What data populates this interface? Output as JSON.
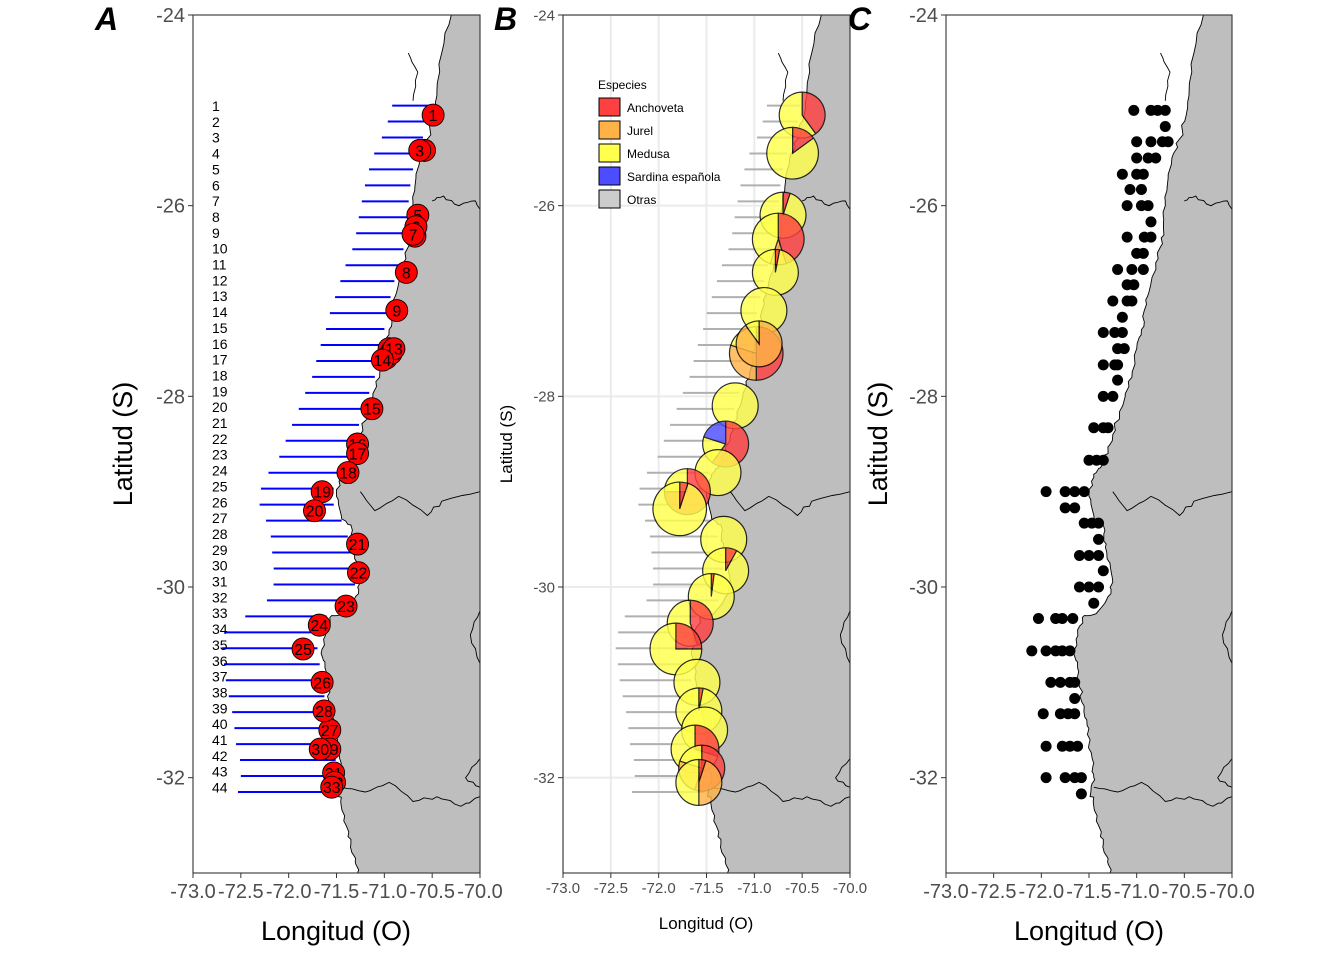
{
  "panels": [
    {
      "id": "A",
      "letter": "A",
      "xlabel": "Longitud (O)",
      "ylabel": "Latitud (S)"
    },
    {
      "id": "B",
      "letter": "B",
      "xlabel": "Longitud (O)",
      "ylabel": "Latitud (S)"
    },
    {
      "id": "C",
      "letter": "C",
      "xlabel": "Longitud (O)",
      "ylabel": "Latitud (S)"
    }
  ],
  "axes": {
    "x_ticks": [
      "-73.0",
      "-72.5",
      "-72.0",
      "-71.5",
      "-71.0",
      "-70.5",
      "-70.0"
    ],
    "y_ticks": [
      "-24",
      "-26",
      "-28",
      "-30",
      "-32"
    ],
    "xlim": [
      -73.0,
      -70.0
    ],
    "ylim": [
      -33.0,
      -24.0
    ]
  },
  "colors": {
    "land": "#bebebe",
    "transect": "#0000ff",
    "station": "#ff0000",
    "grid": "#ebebeb"
  },
  "legend": {
    "title": "Especies",
    "position": "top-left",
    "items": [
      {
        "label": "Anchoveta",
        "color": "#ff4040"
      },
      {
        "label": "Jurel",
        "color": "#ffb347"
      },
      {
        "label": "Medusa",
        "color": "#ffff4d"
      },
      {
        "label": "Sardina española",
        "color": "#4d4dff"
      },
      {
        "label": "Otras",
        "color": "#cccccc"
      }
    ]
  },
  "transect_labels": [
    "1",
    "2",
    "3",
    "4",
    "5",
    "6",
    "7",
    "8",
    "9",
    "10",
    "11",
    "12",
    "13",
    "14",
    "15",
    "16",
    "17",
    "18",
    "19",
    "20",
    "21",
    "22",
    "23",
    "24",
    "25",
    "26",
    "27",
    "28",
    "29",
    "30",
    "31",
    "32",
    "33",
    "34",
    "35",
    "36",
    "37",
    "38",
    "39",
    "40",
    "41",
    "42",
    "43",
    "44"
  ],
  "chart_data": [
    {
      "type": "scatter",
      "panel": "A",
      "description_label": "stations",
      "x_label": "Longitud (O)",
      "y_label": "Latitud (S)",
      "points": [
        {
          "id": "1",
          "lon": -70.49,
          "lat": -25.05
        },
        {
          "id": "2",
          "lon": -70.58,
          "lat": -25.42
        },
        {
          "id": "3",
          "lon": -70.63,
          "lat": -25.42
        },
        {
          "id": "4",
          "lon": -70.68,
          "lat": -26.32
        },
        {
          "id": "5",
          "lon": -70.65,
          "lat": -26.1
        },
        {
          "id": "6",
          "lon": -70.67,
          "lat": -26.22
        },
        {
          "id": "7",
          "lon": -70.7,
          "lat": -26.3
        },
        {
          "id": "8",
          "lon": -70.77,
          "lat": -26.7
        },
        {
          "id": "9",
          "lon": -70.87,
          "lat": -27.1
        },
        {
          "id": "10",
          "lon": -70.95,
          "lat": -27.5
        },
        {
          "id": "11",
          "lon": -70.98,
          "lat": -27.6
        },
        {
          "id": "12",
          "lon": -70.93,
          "lat": -27.55
        },
        {
          "id": "13",
          "lon": -70.9,
          "lat": -27.5
        },
        {
          "id": "14",
          "lon": -71.02,
          "lat": -27.62
        },
        {
          "id": "15",
          "lon": -71.13,
          "lat": -28.13
        },
        {
          "id": "16",
          "lon": -71.28,
          "lat": -28.5
        },
        {
          "id": "17",
          "lon": -71.28,
          "lat": -28.6
        },
        {
          "id": "18",
          "lon": -71.38,
          "lat": -28.8
        },
        {
          "id": "19",
          "lon": -71.65,
          "lat": -29.0
        },
        {
          "id": "20",
          "lon": -71.73,
          "lat": -29.2
        },
        {
          "id": "21",
          "lon": -71.28,
          "lat": -29.55
        },
        {
          "id": "22",
          "lon": -71.27,
          "lat": -29.85
        },
        {
          "id": "23",
          "lon": -71.4,
          "lat": -30.2
        },
        {
          "id": "24",
          "lon": -71.68,
          "lat": -30.4
        },
        {
          "id": "25",
          "lon": -71.85,
          "lat": -30.65
        },
        {
          "id": "26",
          "lon": -71.65,
          "lat": -31.0
        },
        {
          "id": "27",
          "lon": -71.57,
          "lat": -31.5
        },
        {
          "id": "28",
          "lon": -71.63,
          "lat": -31.3
        },
        {
          "id": "29",
          "lon": -71.57,
          "lat": -31.7
        },
        {
          "id": "30",
          "lon": -71.67,
          "lat": -31.7
        },
        {
          "id": "31",
          "lon": -71.53,
          "lat": -31.95
        },
        {
          "id": "32",
          "lon": -71.52,
          "lat": -32.05
        },
        {
          "id": "33",
          "lon": -71.55,
          "lat": -32.1
        }
      ]
    },
    {
      "type": "pie",
      "panel": "B",
      "series_names": [
        "Anchoveta",
        "Jurel",
        "Medusa",
        "Sardina española",
        "Otras"
      ],
      "pies": [
        {
          "lon": -70.5,
          "lat": -25.05,
          "r": 0.24,
          "fractions": [
            0.4,
            0.0,
            0.6,
            0.0,
            0.0
          ]
        },
        {
          "lon": -70.6,
          "lat": -25.45,
          "r": 0.27,
          "fractions": [
            0.15,
            0.0,
            0.85,
            0.0,
            0.0
          ]
        },
        {
          "lon": -70.7,
          "lat": -26.1,
          "r": 0.24,
          "fractions": [
            0.05,
            0.0,
            0.95,
            0.0,
            0.0
          ]
        },
        {
          "lon": -70.75,
          "lat": -26.35,
          "r": 0.27,
          "fractions": [
            0.45,
            0.1,
            0.45,
            0.0,
            0.0
          ]
        },
        {
          "lon": -70.78,
          "lat": -26.7,
          "r": 0.24,
          "fractions": [
            0.03,
            0.0,
            0.97,
            0.0,
            0.0
          ]
        },
        {
          "lon": -70.9,
          "lat": -27.1,
          "r": 0.24,
          "fractions": [
            0.0,
            0.0,
            1.0,
            0.0,
            0.0
          ]
        },
        {
          "lon": -70.98,
          "lat": -27.55,
          "r": 0.28,
          "fractions": [
            0.5,
            0.3,
            0.2,
            0.0,
            0.0
          ]
        },
        {
          "lon": -70.95,
          "lat": -27.45,
          "r": 0.24,
          "fractions": [
            0.0,
            0.9,
            0.1,
            0.0,
            0.0
          ]
        },
        {
          "lon": -71.2,
          "lat": -28.1,
          "r": 0.24,
          "fractions": [
            0.0,
            0.0,
            1.0,
            0.0,
            0.0
          ]
        },
        {
          "lon": -71.3,
          "lat": -28.5,
          "r": 0.24,
          "fractions": [
            0.6,
            0.0,
            0.2,
            0.2,
            0.0
          ]
        },
        {
          "lon": -71.38,
          "lat": -28.8,
          "r": 0.24,
          "fractions": [
            0.0,
            0.0,
            1.0,
            0.0,
            0.0
          ]
        },
        {
          "lon": -71.7,
          "lat": -29.0,
          "r": 0.24,
          "fractions": [
            0.75,
            0.0,
            0.25,
            0.0,
            0.0
          ]
        },
        {
          "lon": -71.78,
          "lat": -29.18,
          "r": 0.28,
          "fractions": [
            0.05,
            0.0,
            0.95,
            0.0,
            0.0
          ]
        },
        {
          "lon": -71.32,
          "lat": -29.5,
          "r": 0.24,
          "fractions": [
            0.0,
            0.0,
            1.0,
            0.0,
            0.0
          ]
        },
        {
          "lon": -71.3,
          "lat": -29.83,
          "r": 0.24,
          "fractions": [
            0.08,
            0.0,
            0.92,
            0.0,
            0.0
          ]
        },
        {
          "lon": -71.45,
          "lat": -30.1,
          "r": 0.24,
          "fractions": [
            0.02,
            0.0,
            0.98,
            0.0,
            0.0
          ]
        },
        {
          "lon": -71.67,
          "lat": -30.38,
          "r": 0.24,
          "fractions": [
            0.45,
            0.0,
            0.55,
            0.0,
            0.0
          ]
        },
        {
          "lon": -71.82,
          "lat": -30.65,
          "r": 0.27,
          "fractions": [
            0.25,
            0.0,
            0.75,
            0.0,
            0.0
          ]
        },
        {
          "lon": -71.6,
          "lat": -31.0,
          "r": 0.24,
          "fractions": [
            0.0,
            0.0,
            1.0,
            0.0,
            0.0
          ]
        },
        {
          "lon": -71.58,
          "lat": -31.3,
          "r": 0.24,
          "fractions": [
            0.03,
            0.0,
            0.97,
            0.0,
            0.0
          ]
        },
        {
          "lon": -71.52,
          "lat": -31.5,
          "r": 0.24,
          "fractions": [
            0.0,
            0.0,
            1.0,
            0.0,
            0.0
          ]
        },
        {
          "lon": -71.62,
          "lat": -31.7,
          "r": 0.25,
          "fractions": [
            0.3,
            0.0,
            0.7,
            0.0,
            0.0
          ]
        },
        {
          "lon": -71.55,
          "lat": -31.9,
          "r": 0.24,
          "fractions": [
            0.55,
            0.25,
            0.2,
            0.0,
            0.0
          ]
        },
        {
          "lon": -71.58,
          "lat": -32.05,
          "r": 0.24,
          "fractions": [
            0.05,
            0.45,
            0.5,
            0.0,
            0.0
          ]
        }
      ]
    },
    {
      "type": "scatter",
      "panel": "C",
      "x_label": "Longitud (O)",
      "y_label": "Latitud (S)",
      "grid_rows": [
        {
          "lat": -25.0,
          "lons": [
            -71.03,
            -70.85,
            -70.78,
            -70.7
          ]
        },
        {
          "lat": -25.17,
          "lons": [
            -70.7
          ]
        },
        {
          "lat": -25.33,
          "lons": [
            -71.0,
            -70.85,
            -70.73,
            -70.67
          ]
        },
        {
          "lat": -25.5,
          "lons": [
            -71.0,
            -70.88,
            -70.8
          ]
        },
        {
          "lat": -25.67,
          "lons": [
            -71.15,
            -71.0,
            -70.93
          ]
        },
        {
          "lat": -25.83,
          "lons": [
            -71.07,
            -70.95
          ]
        },
        {
          "lat": -26.0,
          "lons": [
            -71.1,
            -70.95,
            -70.88
          ]
        },
        {
          "lat": -26.17,
          "lons": [
            -70.85
          ]
        },
        {
          "lat": -26.33,
          "lons": [
            -71.1,
            -70.92,
            -70.85
          ]
        },
        {
          "lat": -26.5,
          "lons": [
            -71.0,
            -70.93
          ]
        },
        {
          "lat": -26.67,
          "lons": [
            -71.2,
            -71.05,
            -70.93
          ]
        },
        {
          "lat": -26.83,
          "lons": [
            -71.1,
            -71.03
          ]
        },
        {
          "lat": -27.0,
          "lons": [
            -71.25,
            -71.1,
            -71.05
          ]
        },
        {
          "lat": -27.17,
          "lons": [
            -71.15
          ]
        },
        {
          "lat": -27.33,
          "lons": [
            -71.35,
            -71.23,
            -71.15
          ]
        },
        {
          "lat": -27.5,
          "lons": [
            -71.2,
            -71.13
          ]
        },
        {
          "lat": -27.67,
          "lons": [
            -71.35,
            -71.23,
            -71.2
          ]
        },
        {
          "lat": -27.83,
          "lons": [
            -71.2
          ]
        },
        {
          "lat": -28.0,
          "lons": [
            -71.35,
            -71.25
          ]
        },
        {
          "lat": -28.33,
          "lons": [
            -71.45,
            -71.35,
            -71.3
          ]
        },
        {
          "lat": -28.67,
          "lons": [
            -71.5,
            -71.42,
            -71.35
          ]
        },
        {
          "lat": -29.0,
          "lons": [
            -71.95,
            -71.75,
            -71.65,
            -71.55
          ]
        },
        {
          "lat": -29.17,
          "lons": [
            -71.75,
            -71.65
          ]
        },
        {
          "lat": -29.33,
          "lons": [
            -71.55,
            -71.47,
            -71.4
          ]
        },
        {
          "lat": -29.5,
          "lons": [
            -71.4
          ]
        },
        {
          "lat": -29.67,
          "lons": [
            -71.6,
            -71.5,
            -71.4
          ]
        },
        {
          "lat": -29.83,
          "lons": [
            -71.35
          ]
        },
        {
          "lat": -30.0,
          "lons": [
            -71.6,
            -71.5,
            -71.4
          ]
        },
        {
          "lat": -30.17,
          "lons": [
            -71.45
          ]
        },
        {
          "lat": -30.33,
          "lons": [
            -72.03,
            -71.85,
            -71.78,
            -71.67
          ]
        },
        {
          "lat": -30.67,
          "lons": [
            -72.1,
            -71.95,
            -71.85,
            -71.78,
            -71.7
          ]
        },
        {
          "lat": -31.0,
          "lons": [
            -71.9,
            -71.8,
            -71.7,
            -71.65
          ]
        },
        {
          "lat": -31.17,
          "lons": [
            -71.65
          ]
        },
        {
          "lat": -31.33,
          "lons": [
            -71.98,
            -71.8,
            -71.72,
            -71.65
          ]
        },
        {
          "lat": -31.67,
          "lons": [
            -71.95,
            -71.78,
            -71.7,
            -71.62
          ]
        },
        {
          "lat": -32.0,
          "lons": [
            -71.95,
            -71.75,
            -71.65,
            -71.58
          ]
        },
        {
          "lat": -32.17,
          "lons": [
            -71.58
          ]
        }
      ]
    }
  ]
}
